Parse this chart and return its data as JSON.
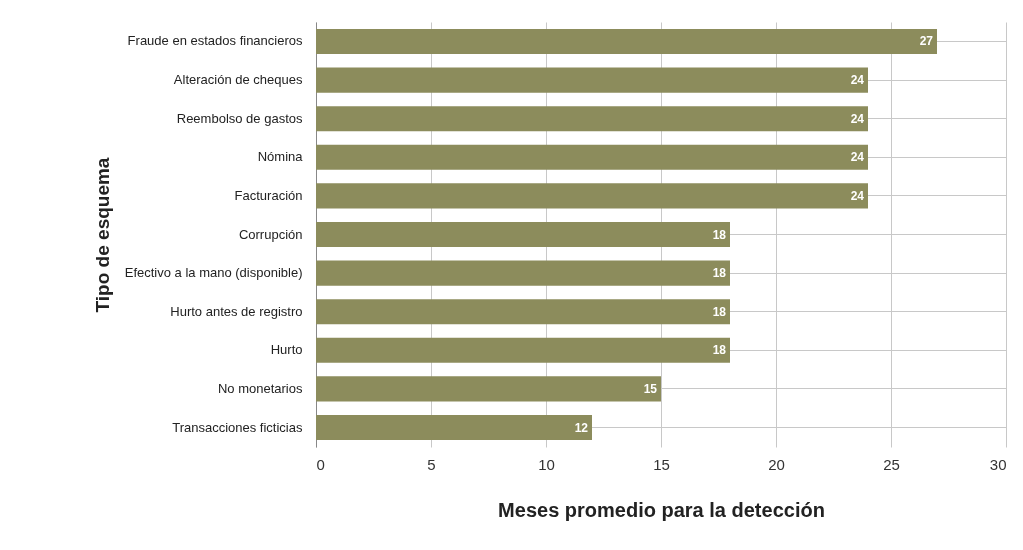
{
  "chart_data": {
    "type": "bar",
    "orientation": "horizontal",
    "xlabel": "Meses promedio para la detección",
    "ylabel": "Tipo de esquema",
    "categories": [
      "Fraude en estados financieros",
      "Alteración de cheques",
      "Reembolso de gastos",
      "Nómina",
      "Facturación",
      "Corrupción",
      "Efectivo a la mano (disponible)",
      "Hurto antes de registro",
      "Hurto",
      "No monetarios",
      "Transacciones ficticias"
    ],
    "values": [
      27,
      24,
      24,
      24,
      24,
      18,
      18,
      18,
      18,
      15,
      12
    ],
    "color": "#8c8c5c",
    "xlim": [
      0,
      30
    ],
    "xticks": [
      0,
      5,
      10,
      15,
      20,
      25,
      30
    ],
    "grid": true,
    "data_labels": true
  }
}
